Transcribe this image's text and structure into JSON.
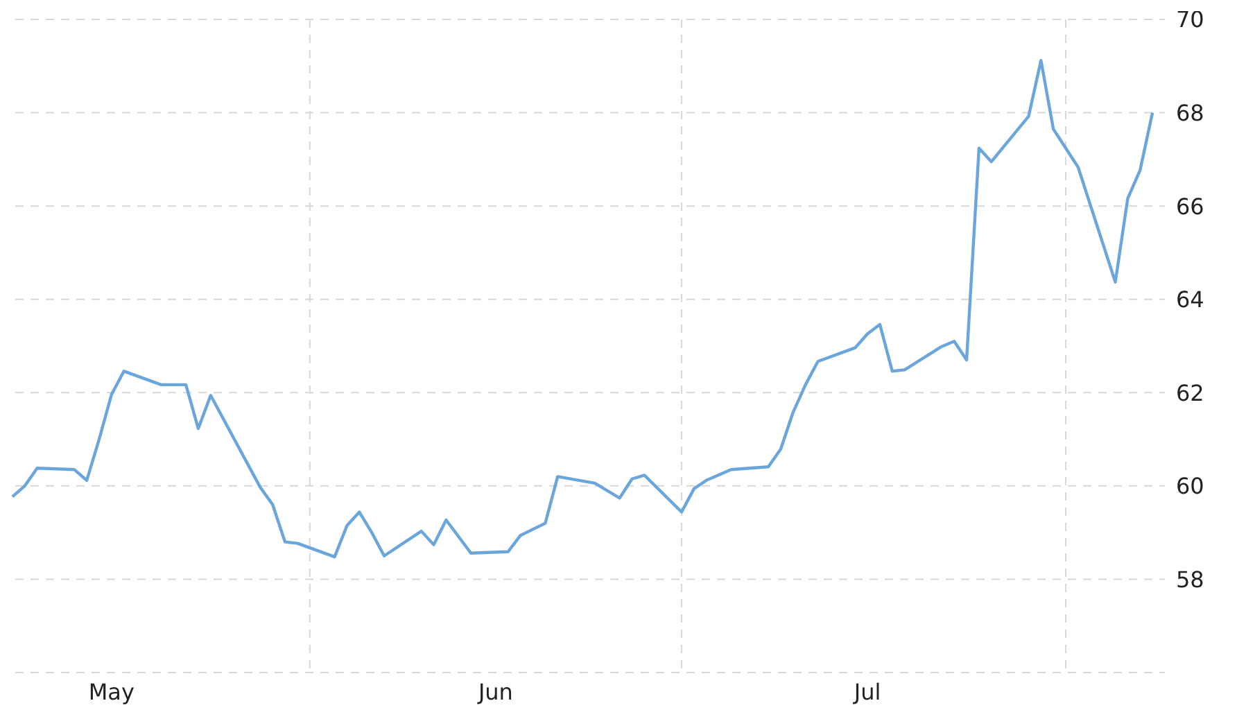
{
  "chart_data": {
    "type": "line",
    "x": [
      "--05-08",
      "--05-09",
      "--05-10",
      "--05-13",
      "--05-14",
      "--05-15",
      "--05-16",
      "--05-17",
      "--05-20",
      "--05-22",
      "--05-23",
      "--05-24",
      "--05-28",
      "--05-29",
      "--05-30",
      "--05-31",
      "--06-03",
      "--06-04",
      "--06-05",
      "--06-06",
      "--06-07",
      "--06-10",
      "--06-11",
      "--06-12",
      "--06-14",
      "--06-17",
      "--06-18",
      "--06-20",
      "--06-21",
      "--06-24",
      "--06-26",
      "--06-27",
      "--06-28",
      "--07-01",
      "--07-02",
      "--07-03",
      "--07-05",
      "--07-08",
      "--07-09",
      "--07-10",
      "--07-11",
      "--07-12",
      "--07-15",
      "--07-16",
      "--07-17",
      "--07-18",
      "--07-19",
      "--07-22",
      "--07-23",
      "--07-24",
      "--07-25",
      "--07-26",
      "--07-29",
      "--07-30",
      "--07-31",
      "--08-02",
      "--08-05",
      "--08-06",
      "--08-07",
      "--08-08"
    ],
    "series": [
      {
        "color": "#6aa5db",
        "values": [
          59.77,
          60.0,
          60.38,
          60.35,
          60.12,
          61.0,
          61.96,
          62.46,
          62.17,
          62.17,
          61.23,
          61.94,
          59.97,
          59.6,
          58.8,
          58.77,
          58.48,
          59.15,
          59.44,
          59.0,
          58.5,
          59.03,
          58.74,
          59.27,
          58.56,
          58.59,
          58.94,
          59.2,
          60.2,
          60.06,
          59.74,
          60.15,
          60.23,
          59.44,
          59.94,
          60.12,
          60.35,
          60.41,
          60.79,
          61.58,
          62.17,
          62.67,
          62.96,
          63.26,
          63.46,
          62.46,
          62.49,
          62.99,
          63.1,
          62.7,
          67.24,
          66.95,
          67.92,
          69.12,
          67.65,
          66.83,
          64.37,
          66.16,
          66.77,
          68.0
        ]
      }
    ],
    "xlim": [
      "--05-07",
      "--08-09"
    ],
    "xticks": [
      {
        "value": "--05-16",
        "label": "May"
      },
      {
        "value": "--06-01",
        "label": null
      },
      {
        "value": "--06-16",
        "label": "Jun"
      },
      {
        "value": "--07-01",
        "label": null
      },
      {
        "value": "--07-16",
        "label": "Jul"
      },
      {
        "value": "--08-01",
        "label": null
      }
    ],
    "ylim": [
      56,
      70
    ],
    "yticks": [
      {
        "value": 56,
        "label": null
      },
      58,
      60,
      62,
      64,
      66,
      68,
      70
    ],
    "grid": true,
    "legend": false,
    "marker": "none",
    "line_style": "solid"
  }
}
